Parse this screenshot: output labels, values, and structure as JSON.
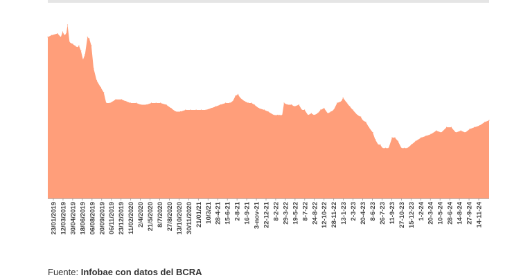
{
  "chart_data": {
    "type": "area",
    "title": "",
    "xlabel": "",
    "ylabel": "",
    "grid": false,
    "color": "#ff9e7a",
    "tick_labels": [
      "23/01/2019",
      "12/03/2019",
      "30/04/2019",
      "18/06/2019",
      "06/08/2019",
      "20/09/2019",
      "06/11/2019",
      "23/12/2019",
      "11/02/2020",
      "2/4/2020",
      "21/5/2020",
      "8/7/2020",
      "27/8/2020",
      "13/10/2020",
      "30/11/2020",
      "21/01/21",
      "10/3/21",
      "28-4-21",
      "15-6-21",
      "2-8-21",
      "16-9-21",
      "3-nov-21",
      "22-12-21",
      "8-2-22",
      "29-3-22",
      "19-5-22",
      "8-7-22",
      "24-8-22",
      "12-10-22",
      "28-11-22",
      "13-1-23",
      "2-3-23",
      "20-4-23",
      "8-6-23",
      "26-7-23",
      "11-9-23",
      "27-10-23",
      "15-12-23",
      "1-2-24",
      "20-3-24",
      "10-5-24",
      "28-6-24",
      "14-8-24",
      "27-9-24",
      "14-11-24"
    ],
    "x": [
      "2019-01-23",
      "2019-02-10",
      "2019-03-12",
      "2019-03-28",
      "2019-04-06",
      "2019-04-15",
      "2019-04-24",
      "2019-04-30",
      "2019-05-10",
      "2019-05-25",
      "2019-06-05",
      "2019-06-18",
      "2019-06-25",
      "2019-07-05",
      "2019-07-15",
      "2019-07-25",
      "2019-08-06",
      "2019-08-15",
      "2019-08-25",
      "2019-09-05",
      "2019-09-20",
      "2019-10-10",
      "2019-10-25",
      "2019-11-06",
      "2019-11-25",
      "2019-12-23",
      "2020-01-20",
      "2020-02-11",
      "2020-03-05",
      "2020-04-02",
      "2020-04-25",
      "2020-05-21",
      "2020-06-15",
      "2020-07-08",
      "2020-07-30",
      "2020-08-27",
      "2020-09-20",
      "2020-10-13",
      "2020-11-05",
      "2020-11-30",
      "2020-12-25",
      "2021-01-21",
      "2021-02-15",
      "2021-03-10",
      "2021-04-05",
      "2021-04-28",
      "2021-05-20",
      "2021-06-15",
      "2021-07-05",
      "2021-07-20",
      "2021-08-02",
      "2021-08-15",
      "2021-08-25",
      "2021-09-16",
      "2021-10-05",
      "2021-10-20",
      "2021-11-03",
      "2021-11-25",
      "2021-12-22",
      "2022-01-10",
      "2022-02-08",
      "2022-02-25",
      "2022-03-05",
      "2022-03-20",
      "2022-03-29",
      "2022-04-15",
      "2022-05-05",
      "2022-05-19",
      "2022-06-10",
      "2022-06-25",
      "2022-07-08",
      "2022-07-25",
      "2022-08-10",
      "2022-08-24",
      "2022-09-10",
      "2022-09-25",
      "2022-10-12",
      "2022-10-30",
      "2022-11-15",
      "2022-11-28",
      "2022-12-15",
      "2023-01-05",
      "2023-01-13",
      "2023-02-01",
      "2023-02-15",
      "2023-03-02",
      "2023-03-25",
      "2023-04-10",
      "2023-04-20",
      "2023-05-05",
      "2023-05-20",
      "2023-06-08",
      "2023-06-20",
      "2023-07-05",
      "2023-07-15",
      "2023-07-26",
      "2023-08-10",
      "2023-08-25",
      "2023-09-11",
      "2023-09-25",
      "2023-10-10",
      "2023-10-27",
      "2023-11-10",
      "2023-11-25",
      "2023-12-15",
      "2024-01-05",
      "2024-02-01",
      "2024-02-25",
      "2024-03-20",
      "2024-04-15",
      "2024-05-10",
      "2024-06-05",
      "2024-06-28",
      "2024-07-20",
      "2024-08-14",
      "2024-09-05",
      "2024-09-27",
      "2024-10-20",
      "2024-11-14",
      "2024-12-10",
      "2024-12-31"
    ],
    "values": [
      0.93,
      0.94,
      0.95,
      0.93,
      0.96,
      0.94,
      0.95,
      1.0,
      0.9,
      0.89,
      0.88,
      0.87,
      0.88,
      0.85,
      0.8,
      0.83,
      0.93,
      0.92,
      0.88,
      0.75,
      0.68,
      0.64,
      0.61,
      0.55,
      0.55,
      0.57,
      0.57,
      0.56,
      0.55,
      0.55,
      0.54,
      0.54,
      0.55,
      0.55,
      0.55,
      0.54,
      0.52,
      0.5,
      0.5,
      0.51,
      0.51,
      0.51,
      0.51,
      0.51,
      0.52,
      0.53,
      0.54,
      0.55,
      0.55,
      0.56,
      0.59,
      0.6,
      0.58,
      0.56,
      0.55,
      0.55,
      0.54,
      0.52,
      0.51,
      0.5,
      0.48,
      0.48,
      0.48,
      0.48,
      0.55,
      0.54,
      0.54,
      0.53,
      0.54,
      0.51,
      0.51,
      0.48,
      0.49,
      0.48,
      0.49,
      0.51,
      0.52,
      0.49,
      0.5,
      0.51,
      0.55,
      0.56,
      0.58,
      0.55,
      0.53,
      0.51,
      0.48,
      0.47,
      0.45,
      0.44,
      0.41,
      0.38,
      0.34,
      0.31,
      0.31,
      0.29,
      0.29,
      0.29,
      0.35,
      0.35,
      0.33,
      0.29,
      0.29,
      0.29,
      0.31,
      0.33,
      0.35,
      0.36,
      0.37,
      0.39,
      0.38,
      0.41,
      0.41,
      0.38,
      0.39,
      0.38,
      0.4,
      0.41,
      0.42,
      0.44,
      0.45
    ]
  },
  "source": {
    "prefix": "Fuente: ",
    "bold": "Infobae",
    "suffix": " con datos del BCRA"
  }
}
